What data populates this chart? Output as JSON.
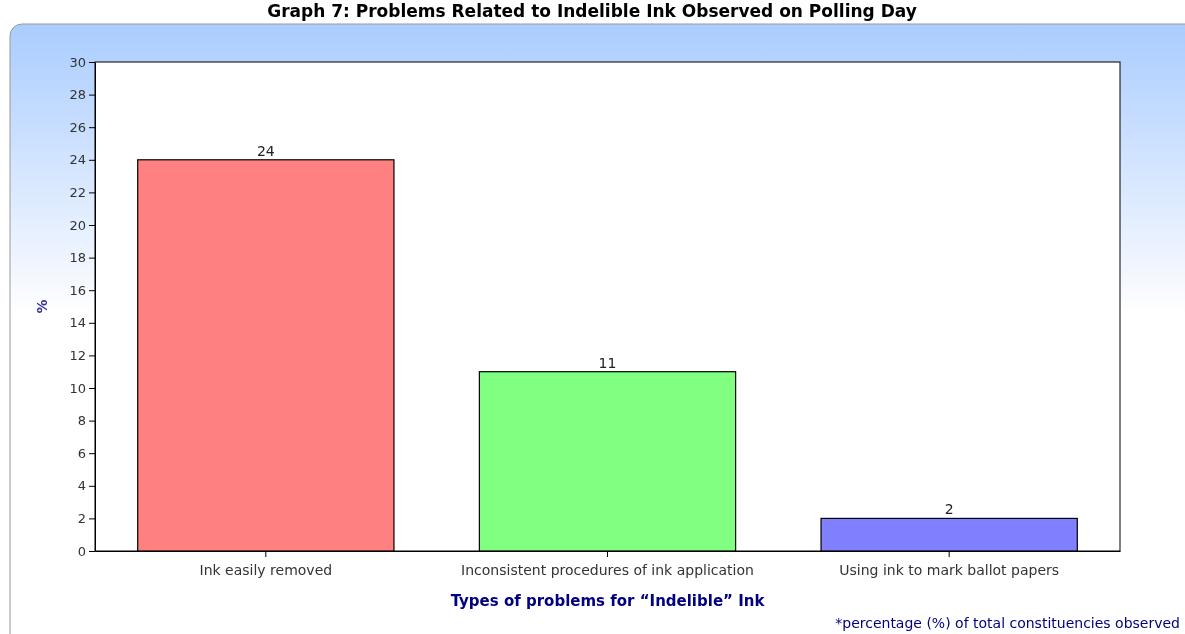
{
  "chart_data": {
    "type": "bar",
    "title": "Graph 7: Problems Related to Indelible Ink Observed on Polling Day",
    "xlabel": "Types of problems for “Indelible” Ink",
    "ylabel": "%",
    "categories": [
      "Ink easily removed",
      "Inconsistent procedures of ink application",
      "Using ink to mark ballot papers"
    ],
    "values": [
      24,
      11,
      2
    ],
    "colors": [
      "#ff8080",
      "#80ff80",
      "#8080ff"
    ],
    "ylim": [
      0,
      30
    ],
    "yticks": [
      0,
      2,
      4,
      6,
      8,
      10,
      12,
      14,
      16,
      18,
      20,
      22,
      24,
      26,
      28,
      30
    ],
    "data_labels": true,
    "annotations": [
      "*percentage (%) of total constituencies observed"
    ]
  }
}
